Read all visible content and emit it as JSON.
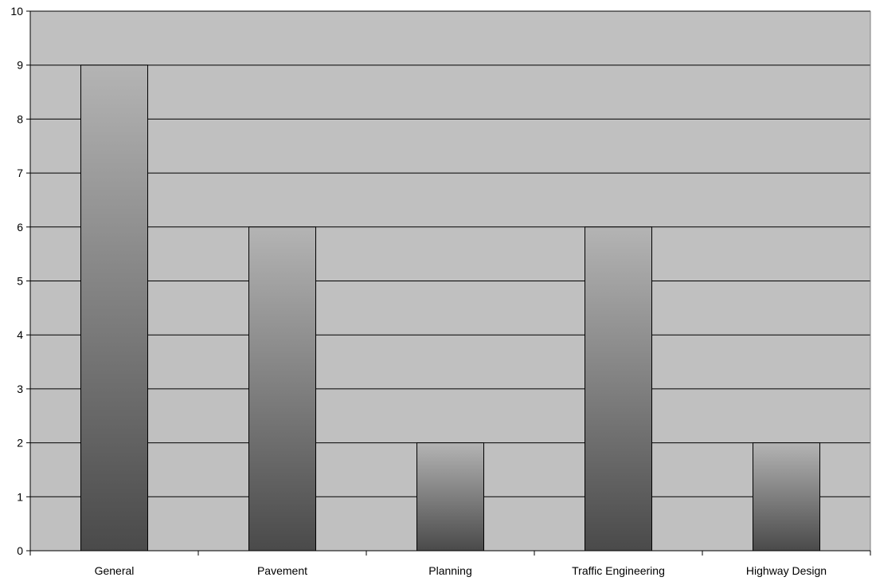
{
  "chart_data": {
    "type": "bar",
    "title": "",
    "xlabel": "",
    "ylabel": "",
    "categories": [
      "General",
      "Pavement",
      "Planning",
      "Traffic Engineering",
      "Highway Design"
    ],
    "values": [
      9,
      6,
      2,
      6,
      2
    ],
    "ylim": [
      0,
      10
    ],
    "yticks": [
      0,
      1,
      2,
      3,
      4,
      5,
      6,
      7,
      8,
      9,
      10
    ],
    "grid": true,
    "legend": "none",
    "colors": {
      "plot_background": "#c0c0c0",
      "gridline": "#000000",
      "bar_gradient_top": "#b4b4b4",
      "bar_gradient_bottom": "#4a4a4a",
      "bar_outline": "#000000"
    }
  }
}
